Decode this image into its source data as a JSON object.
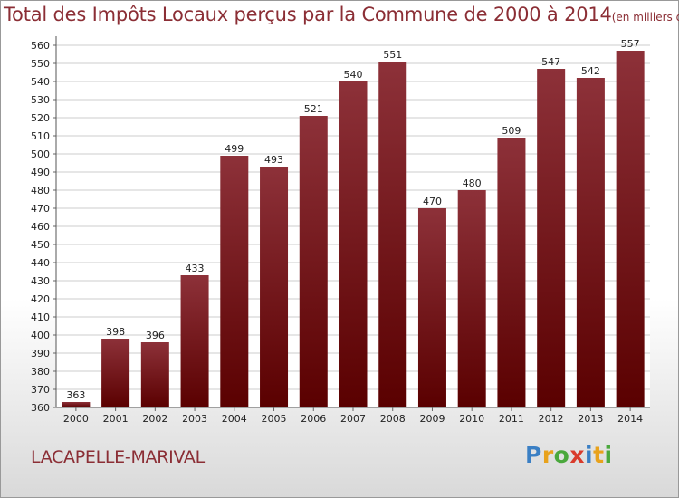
{
  "title": "Total des Impôts Locaux perçus par la Commune de 2000 à 2014",
  "title_unit": "(en milliers d'€)",
  "commune": "LACAPELLE-MARIVAL",
  "logo_text": "Proxiti",
  "colors": {
    "bar_top": "#8d3139",
    "bar_bottom": "#5a0000",
    "title": "#8b2e35",
    "grid": "#cccccc"
  },
  "chart_data": {
    "type": "bar",
    "title": "Total des Impôts Locaux perçus par la Commune de 2000 à 2014",
    "subtitle": "(en milliers d'€)",
    "xlabel": "",
    "ylabel": "",
    "ylim": [
      360,
      560
    ],
    "ytick_step": 10,
    "grid": true,
    "categories": [
      "2000",
      "2001",
      "2002",
      "2003",
      "2004",
      "2005",
      "2006",
      "2007",
      "2008",
      "2009",
      "2010",
      "2011",
      "2012",
      "2013",
      "2014"
    ],
    "values": [
      363,
      398,
      396,
      433,
      499,
      493,
      521,
      540,
      551,
      470,
      480,
      509,
      547,
      542,
      557
    ]
  }
}
